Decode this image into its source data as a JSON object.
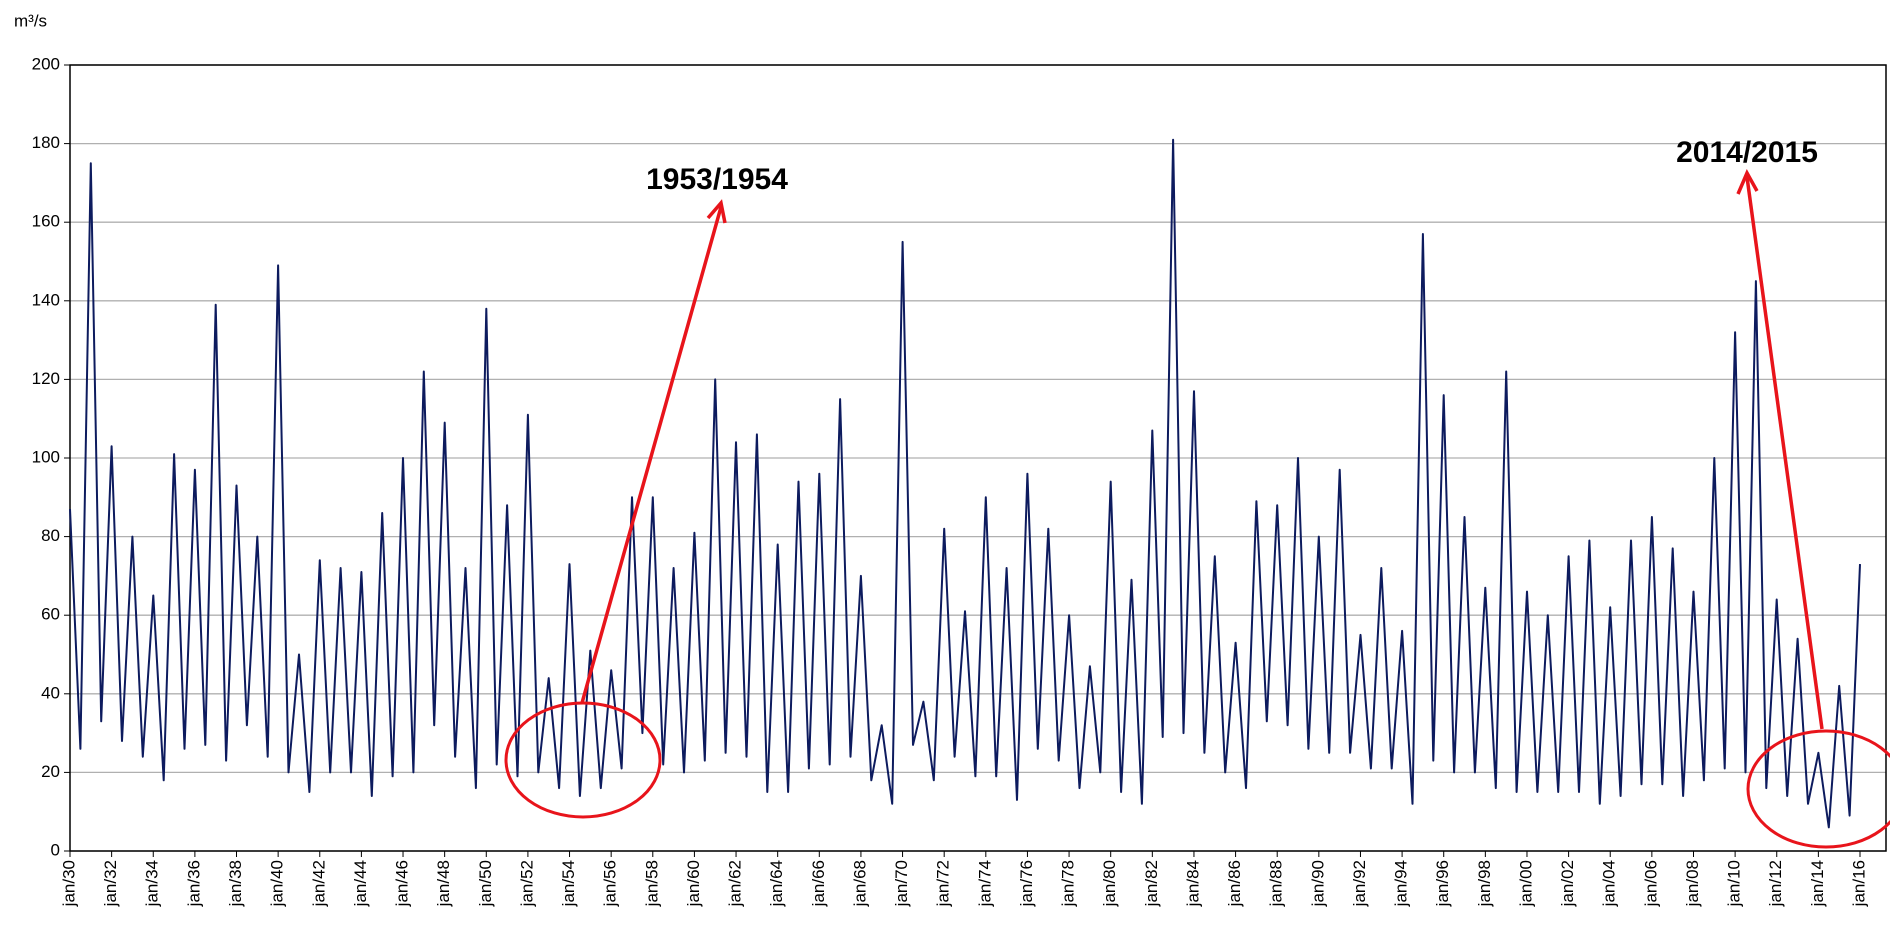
{
  "chart_data": {
    "type": "line",
    "y_label": "m³/s",
    "annotations": [
      "1953/1954",
      "2014/2015"
    ],
    "categories": [
      "jan/30",
      null,
      null,
      null,
      "jan/32",
      null,
      null,
      null,
      "jan/34",
      null,
      null,
      null,
      "jan/36",
      null,
      null,
      null,
      "jan/38",
      null,
      null,
      null,
      "jan/40",
      null,
      null,
      null,
      "jan/42",
      null,
      null,
      null,
      "jan/44",
      null,
      null,
      null,
      "jan/46",
      null,
      null,
      null,
      "jan/48",
      null,
      null,
      null,
      "jan/50",
      null,
      null,
      null,
      "jan/52",
      null,
      null,
      null,
      "jan/54",
      null,
      null,
      null,
      "jan/56",
      null,
      null,
      null,
      "jan/58",
      null,
      null,
      null,
      "jan/60",
      null,
      null,
      null,
      "jan/62",
      null,
      null,
      null,
      "jan/64",
      null,
      null,
      null,
      "jan/66",
      null,
      null,
      null,
      "jan/68",
      null,
      null,
      null,
      "jan/70",
      null,
      null,
      null,
      "jan/72",
      null,
      null,
      null,
      "jan/74",
      null,
      null,
      null,
      "jan/76",
      null,
      null,
      null,
      "jan/78",
      null,
      null,
      null,
      "jan/80",
      null,
      null,
      null,
      "jan/82",
      null,
      null,
      null,
      "jan/84",
      null,
      null,
      null,
      "jan/86",
      null,
      null,
      null,
      "jan/88",
      null,
      null,
      null,
      "jan/90",
      null,
      null,
      null,
      "jan/92",
      null,
      null,
      null,
      "jan/94",
      null,
      null,
      null,
      "jan/96",
      null,
      null,
      null,
      "jan/98",
      null,
      null,
      null,
      "jan/00",
      null,
      null,
      null,
      "jan/02",
      null,
      null,
      null,
      "jan/04",
      null,
      null,
      null,
      "jan/06",
      null,
      null,
      null,
      "jan/08",
      null,
      null,
      null,
      "jan/10",
      null,
      null,
      null,
      "jan/12",
      null,
      null,
      null,
      "jan/14",
      null,
      null,
      null,
      "jan/16"
    ],
    "values": [
      87,
      26,
      175,
      33,
      103,
      28,
      80,
      24,
      65,
      18,
      101,
      26,
      97,
      27,
      139,
      23,
      93,
      32,
      80,
      24,
      149,
      20,
      50,
      15,
      74,
      20,
      72,
      20,
      71,
      14,
      86,
      19,
      100,
      20,
      122,
      32,
      109,
      24,
      72,
      16,
      138,
      22,
      88,
      19,
      111,
      20,
      44,
      16,
      73,
      14,
      51,
      16,
      46,
      21,
      90,
      30,
      90,
      22,
      72,
      20,
      81,
      23,
      120,
      25,
      104,
      24,
      106,
      15,
      78,
      15,
      94,
      21,
      96,
      22,
      115,
      24,
      70,
      18,
      32,
      12,
      155,
      27,
      38,
      18,
      82,
      24,
      61,
      19,
      90,
      19,
      72,
      13,
      96,
      26,
      82,
      23,
      60,
      16,
      47,
      20,
      94,
      15,
      69,
      12,
      107,
      29,
      181,
      30,
      117,
      25,
      75,
      20,
      53,
      16,
      89,
      33,
      88,
      32,
      100,
      26,
      80,
      25,
      97,
      25,
      55,
      21,
      72,
      21,
      56,
      12,
      157,
      23,
      116,
      20,
      85,
      20,
      67,
      16,
      122,
      15,
      66,
      15,
      60,
      15,
      75,
      15,
      79,
      12,
      62,
      14,
      79,
      17,
      85,
      17,
      77,
      14,
      66,
      18,
      100,
      21,
      132,
      20,
      145,
      16,
      64,
      14,
      54,
      12,
      25,
      6,
      42,
      9,
      73
    ],
    "color": "#0d1b5e",
    "ylim": [
      0,
      200
    ],
    "yticks": [
      0,
      20,
      40,
      60,
      80,
      100,
      120,
      140,
      160,
      180,
      200
    ],
    "grid": true
  }
}
